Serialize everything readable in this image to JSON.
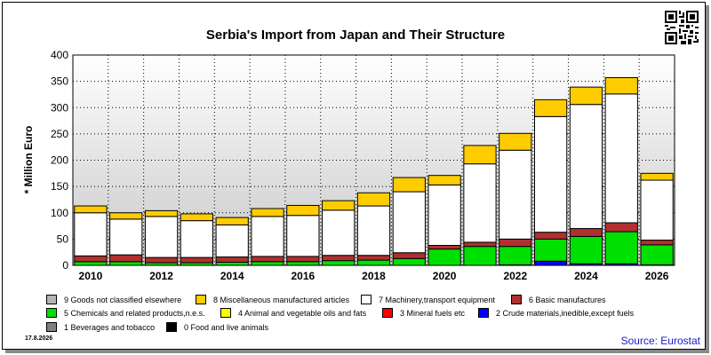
{
  "header": {
    "title": "Serbia's Import from Japan and Their Structure"
  },
  "footer": {
    "date": "17.8.2026",
    "source": "Source: Eurostat"
  },
  "chart_data": {
    "type": "bar",
    "stacked": true,
    "title": "Serbia's Import from Japan and Their Structure",
    "ylabel": "* Million Euro",
    "xlabel": "",
    "ylim": [
      0,
      400
    ],
    "yticks": [
      0,
      50,
      100,
      150,
      200,
      250,
      300,
      350,
      400
    ],
    "x_tick_labels": [
      "2010",
      "2012",
      "2014",
      "2016",
      "2018",
      "2020",
      "2022",
      "2024",
      "2026"
    ],
    "grid": true,
    "legend_position": "bottom",
    "categories": [
      "2010",
      "2011",
      "2012",
      "2013",
      "2014",
      "2015",
      "2016",
      "2017",
      "2018",
      "2019",
      "2020",
      "2021",
      "2022",
      "2023",
      "2024",
      "2025",
      "2026"
    ],
    "series": [
      {
        "name": "0 Food and live animals",
        "color": "#000000",
        "values": [
          0,
          0,
          0,
          0,
          0,
          0,
          0,
          0,
          0,
          0,
          0,
          0,
          0,
          0,
          0,
          0,
          0
        ]
      },
      {
        "name": "1 Beverages and tobacco",
        "color": "#808080",
        "values": [
          0,
          0,
          0,
          0,
          0,
          0,
          0,
          0,
          0,
          0,
          0,
          0,
          0,
          0,
          0,
          0,
          0
        ]
      },
      {
        "name": "2 Crude materials,inedible,except fuels",
        "color": "#0000ff",
        "values": [
          0,
          0,
          0,
          0,
          0,
          0,
          0,
          0,
          0,
          0,
          0,
          0,
          1,
          8,
          3,
          3,
          1
        ]
      },
      {
        "name": "3 Mineral fuels etc",
        "color": "#ff0000",
        "values": [
          0,
          0,
          0,
          0,
          0,
          0,
          0,
          0,
          0,
          0,
          0,
          0,
          0,
          0,
          0,
          0,
          0
        ]
      },
      {
        "name": "4 Animal and vegetable oils and fats",
        "color": "#ffff00",
        "values": [
          0,
          0,
          0,
          0,
          0,
          0,
          0,
          0,
          0,
          0,
          0,
          0,
          0,
          0,
          0,
          0,
          0
        ]
      },
      {
        "name": "5 Chemicals and related products,n.e.s.",
        "color": "#00e000",
        "values": [
          7,
          7,
          5,
          5,
          6,
          7,
          7,
          9,
          10,
          13,
          31,
          36,
          35,
          42,
          52,
          61,
          38
        ]
      },
      {
        "name": "6 Basic manufactures",
        "color": "#b03030",
        "values": [
          11,
          13,
          10,
          10,
          10,
          10,
          10,
          10,
          9,
          11,
          7,
          8,
          14,
          13,
          15,
          17,
          9
        ]
      },
      {
        "name": "7 Machinery,transport equipment",
        "color": "#ffffff",
        "values": [
          82,
          68,
          78,
          70,
          61,
          76,
          78,
          86,
          94,
          116,
          115,
          149,
          169,
          220,
          236,
          245,
          114
        ]
      },
      {
        "name": "8 Miscellaneous manufactured articles",
        "color": "#ffcc00",
        "values": [
          13,
          12,
          11,
          13,
          14,
          15,
          19,
          18,
          25,
          27,
          18,
          35,
          32,
          32,
          33,
          31,
          13
        ]
      },
      {
        "name": "9 Goods not classified elsewhere",
        "color": "#b4b4b4",
        "values": [
          0,
          0,
          0,
          0,
          0,
          0,
          0,
          0,
          0,
          0,
          0,
          0,
          0,
          0,
          0,
          0,
          0
        ]
      }
    ]
  }
}
